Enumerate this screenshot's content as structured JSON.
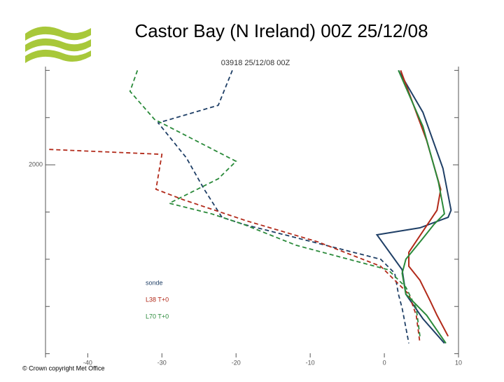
{
  "chart_data": {
    "type": "line",
    "title": "Castor Bay (N Ireland) 00Z 25/12/08",
    "subtitle": "03918 25/12/08 00Z",
    "copyright": "© Crown copyright   Met Office",
    "xlim": [
      -45.7,
      10
    ],
    "xticks": [
      -40,
      -30,
      -20,
      -10,
      0,
      10
    ],
    "ylim": [
      -40,
      3040
    ],
    "yticks": [
      2000
    ],
    "minor_yticks": [
      0,
      500,
      1000,
      1500,
      2500,
      3000
    ],
    "legend": [
      "sonde",
      "L38 T+0",
      "L70 T+0"
    ],
    "legend_colors": [
      "#1f3f66",
      "#b22a1a",
      "#2a8a3a"
    ],
    "series": [
      {
        "color": "#1f3f66",
        "style": "solid",
        "x": [
          1.9,
          5.2,
          7.9,
          9.0,
          8.6,
          4.8,
          -1.0,
          2.4,
          2.9,
          5.2,
          8.1
        ],
        "y": [
          3000,
          2556,
          1963,
          1519,
          1444,
          1333,
          1259,
          889,
          630,
          370,
          111
        ]
      },
      {
        "color": "#1f3f66",
        "style": "dashed",
        "x": [
          -20.5,
          -22.4,
          -30.5,
          -26.7,
          -24.3,
          -21.9,
          -19.0,
          -0.5,
          1.4,
          1.9,
          2.4,
          3.3
        ],
        "y": [
          3000,
          2630,
          2444,
          2074,
          1741,
          1444,
          1370,
          1000,
          852,
          630,
          481,
          111
        ]
      },
      {
        "color": "#b22a1a",
        "style": "solid",
        "x": [
          2.2,
          5.7,
          7.6,
          7.1,
          5.2,
          3.3,
          3.3,
          4.8,
          6.2,
          7.1,
          8.6
        ],
        "y": [
          3000,
          2259,
          1741,
          1519,
          1296,
          1074,
          926,
          778,
          556,
          407,
          185
        ]
      },
      {
        "color": "#b22a1a",
        "style": "dashed",
        "x": [
          -45.2,
          -30.0,
          -30.8,
          -27.1,
          -18.6,
          -9.0,
          -0.5,
          3.3,
          4.3,
          4.8
        ],
        "y": [
          2163,
          2111,
          1741,
          1630,
          1407,
          1185,
          926,
          630,
          407,
          111
        ]
      },
      {
        "color": "#2a8a3a",
        "style": "solid",
        "x": [
          1.9,
          5.2,
          7.3,
          8.1,
          6.7,
          5.2,
          2.9,
          2.4,
          2.9,
          5.7,
          8.3
        ],
        "y": [
          3000,
          2407,
          1815,
          1481,
          1370,
          1222,
          1000,
          852,
          630,
          407,
          111
        ]
      },
      {
        "color": "#2a8a3a",
        "style": "dashed",
        "x": [
          -33.3,
          -34.3,
          -31.0,
          -20.0,
          -22.4,
          -29.0,
          -23.3,
          -19.0,
          -11.9,
          0.5,
          2.9,
          4.3,
          4.8
        ],
        "y": [
          3000,
          2778,
          2481,
          2037,
          1852,
          1593,
          1481,
          1370,
          1148,
          889,
          704,
          481,
          185
        ]
      }
    ]
  }
}
